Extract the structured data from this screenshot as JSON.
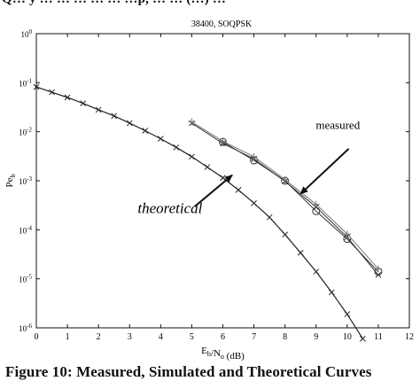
{
  "page": {
    "top_crop_text": "Q… y … … … … … …p, … … (…) …",
    "caption": "Figure 10: Measured, Simulated and Theoretical Curves"
  },
  "chart_data": {
    "type": "line",
    "title": "38400, SOQPSK",
    "xlabel": "E_b/N_o (dB)",
    "ylabel": "Pe_b",
    "xlim": [
      0,
      12
    ],
    "ylim": [
      1e-06,
      1
    ],
    "y_scale": "log",
    "x_ticks": [
      0,
      1,
      2,
      3,
      4,
      5,
      6,
      7,
      8,
      9,
      10,
      11,
      12
    ],
    "y_ticks": [
      {
        "exp": 0,
        "value": 1
      },
      {
        "exp": -1,
        "value": 0.1
      },
      {
        "exp": -2,
        "value": 0.01
      },
      {
        "exp": -3,
        "value": 0.001
      },
      {
        "exp": -4,
        "value": 0.0001
      },
      {
        "exp": -5,
        "value": 1e-05
      },
      {
        "exp": -6,
        "value": 1e-06
      }
    ],
    "y_tick_base": "10",
    "grid": false,
    "series": [
      {
        "marker": "x",
        "x": [
          0,
          0.5,
          1,
          1.5,
          2,
          2.5,
          3,
          3.5,
          4,
          4.5,
          5,
          5.5,
          6,
          6.5,
          7,
          7.5,
          8,
          8.5,
          9,
          9.5,
          10,
          10.5
        ],
        "y": [
          0.082,
          0.064,
          0.05,
          0.038,
          0.028,
          0.021,
          0.015,
          0.0105,
          0.0072,
          0.0048,
          0.0031,
          0.0019,
          0.00115,
          0.00065,
          0.00035,
          0.00018,
          8e-05,
          3.4e-05,
          1.4e-05,
          5.3e-06,
          1.9e-06,
          6e-07
        ],
        "color": "#222222"
      },
      {
        "marker": "x",
        "x": [
          5,
          6,
          7,
          8,
          9,
          10,
          11
        ],
        "y": [
          0.015,
          0.0058,
          0.0028,
          0.00097,
          0.00029,
          7.1e-05,
          1.2e-05
        ],
        "color": "#333333"
      },
      {
        "marker": "o",
        "x": [
          6,
          7,
          8,
          9,
          10,
          11
        ],
        "y": [
          0.0062,
          0.0026,
          0.001,
          0.00024,
          6.5e-05,
          1.4e-05
        ],
        "color": "#333333"
      },
      {
        "marker": "+",
        "x": [
          5,
          6,
          7,
          8,
          9,
          10,
          11
        ],
        "y": [
          0.016,
          0.0064,
          0.0031,
          0.00105,
          0.00033,
          8.2e-05,
          1.6e-05
        ],
        "color": "#777777"
      }
    ],
    "annotations": [
      {
        "text": "measured",
        "italic": false,
        "anchor": [
          9.7,
          0.0115
        ]
      },
      {
        "text": "theoretical",
        "italic": true,
        "anchor": [
          4.3,
          0.00022
        ]
      }
    ],
    "arrows": [
      {
        "from": [
          10.05,
          0.0045
        ],
        "to": [
          8.5,
          0.00054
        ]
      },
      {
        "from": [
          5.1,
          0.0003
        ],
        "to": [
          6.3,
          0.0013
        ]
      }
    ]
  }
}
